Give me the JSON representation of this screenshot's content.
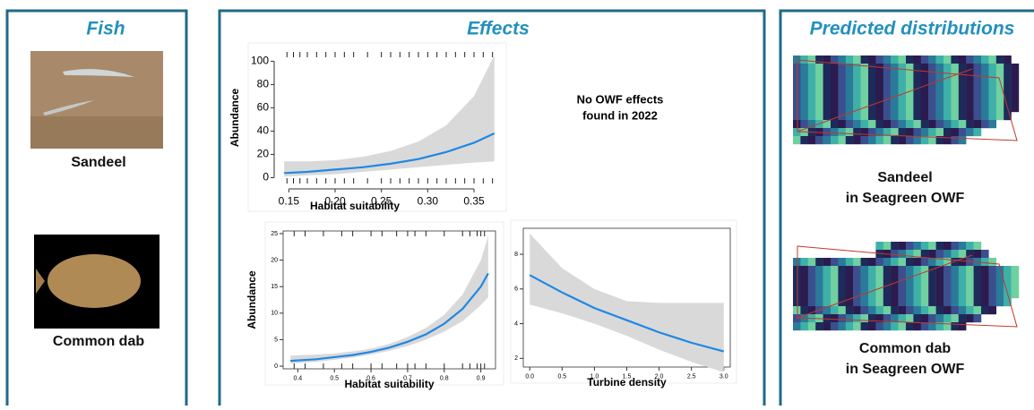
{
  "panels": {
    "fish": {
      "title": "Fish",
      "species": [
        "Sandeel",
        "Common dab"
      ]
    },
    "effects": {
      "title": "Effects",
      "note": [
        "No OWF effects",
        "found in 2022"
      ]
    },
    "distributions": {
      "title": "Predicted distributions",
      "maps": [
        [
          "Sandeel",
          "in Seagreen OWF"
        ],
        [
          "Common dab",
          "in Seagreen OWF"
        ]
      ]
    }
  },
  "chart_data": [
    {
      "type": "line",
      "xlabel": "Habitat suitability",
      "ylabel": "Abundance",
      "box": false,
      "x": [
        0.145,
        0.17,
        0.2,
        0.23,
        0.26,
        0.29,
        0.32,
        0.35,
        0.372
      ],
      "series": [
        {
          "color": "#1e88e5",
          "values": [
            4,
            5,
            7,
            9,
            12,
            16,
            22,
            30,
            38
          ]
        }
      ],
      "band": {
        "color": "#d9d9d9",
        "lower": [
          1,
          2,
          3,
          5,
          7,
          9,
          11,
          13,
          14
        ],
        "upper": [
          14,
          14,
          15,
          18,
          23,
          31,
          45,
          70,
          105
        ]
      },
      "rug": [
        0.148,
        0.155,
        0.162,
        0.17,
        0.18,
        0.19,
        0.2,
        0.21,
        0.22,
        0.235,
        0.25,
        0.26,
        0.27,
        0.28,
        0.29,
        0.3,
        0.31,
        0.32,
        0.33,
        0.34,
        0.35,
        0.36,
        0.37
      ],
      "xlim": [
        0.14,
        0.38
      ],
      "xticks": [
        0.15,
        {
          "value": 0.2,
          "label": "0.20"
        },
        0.25,
        {
          "value": 0.3,
          "label": "0.30"
        },
        0.35
      ],
      "ylim": [
        -5,
        108
      ],
      "yticks": [
        0,
        20,
        40,
        60,
        80,
        100
      ]
    },
    {
      "type": "line",
      "xlabel": "Habitat suitability",
      "ylabel": "Abundance",
      "box": true,
      "x": [
        0.38,
        0.45,
        0.5,
        0.55,
        0.6,
        0.65,
        0.7,
        0.75,
        0.8,
        0.85,
        0.9,
        0.92
      ],
      "series": [
        {
          "color": "#1e88e5",
          "values": [
            1,
            1.3,
            1.7,
            2.1,
            2.7,
            3.5,
            4.6,
            6,
            8,
            10.8,
            15,
            17.5
          ]
        }
      ],
      "band": {
        "color": "#d9d9d9",
        "lower": [
          0.5,
          0.8,
          1.2,
          1.6,
          2.2,
          2.9,
          3.8,
          5,
          6.5,
          8.5,
          11.5,
          13
        ],
        "upper": [
          2,
          2.2,
          2.4,
          2.8,
          3.3,
          4.2,
          5.5,
          7.2,
          9.7,
          13.5,
          20,
          24.5
        ]
      },
      "rug": [
        0.39,
        0.42,
        0.47,
        0.52,
        0.55,
        0.6,
        0.63,
        0.67,
        0.7,
        0.72,
        0.75,
        0.8,
        0.85,
        0.87,
        0.89,
        0.9,
        0.91
      ],
      "xlim": [
        0.36,
        0.94
      ],
      "xticks": [
        0.4,
        0.5,
        0.6,
        0.7,
        0.8,
        0.9
      ],
      "ylim": [
        -0.5,
        25.5
      ],
      "yticks": [
        0,
        5,
        10,
        15,
        20,
        25
      ]
    },
    {
      "type": "line",
      "xlabel": "Turbine density",
      "box": true,
      "x": [
        0,
        0.5,
        1,
        1.5,
        2,
        2.5,
        3
      ],
      "series": [
        {
          "color": "#1e88e5",
          "values": [
            6.8,
            5.8,
            4.9,
            4.2,
            3.5,
            2.9,
            2.4
          ]
        }
      ],
      "band": {
        "color": "#d9d9d9",
        "lower": [
          5.1,
          4.6,
          4,
          3.3,
          2.5,
          1.8,
          1.2
        ],
        "upper": [
          9.2,
          7.2,
          6,
          5.3,
          5.2,
          5.2,
          5.2
        ]
      },
      "xlim": [
        -0.1,
        3.1
      ],
      "xticks": [
        {
          "value": 0,
          "label": "0.0"
        },
        0.5,
        {
          "value": 1,
          "label": "1.0"
        },
        1.5,
        {
          "value": 2,
          "label": "2.0"
        },
        2.5,
        {
          "value": 3,
          "label": "3.0"
        }
      ],
      "ylim": [
        1.5,
        9.5
      ],
      "yticks": [
        2,
        4,
        6,
        8
      ]
    }
  ]
}
